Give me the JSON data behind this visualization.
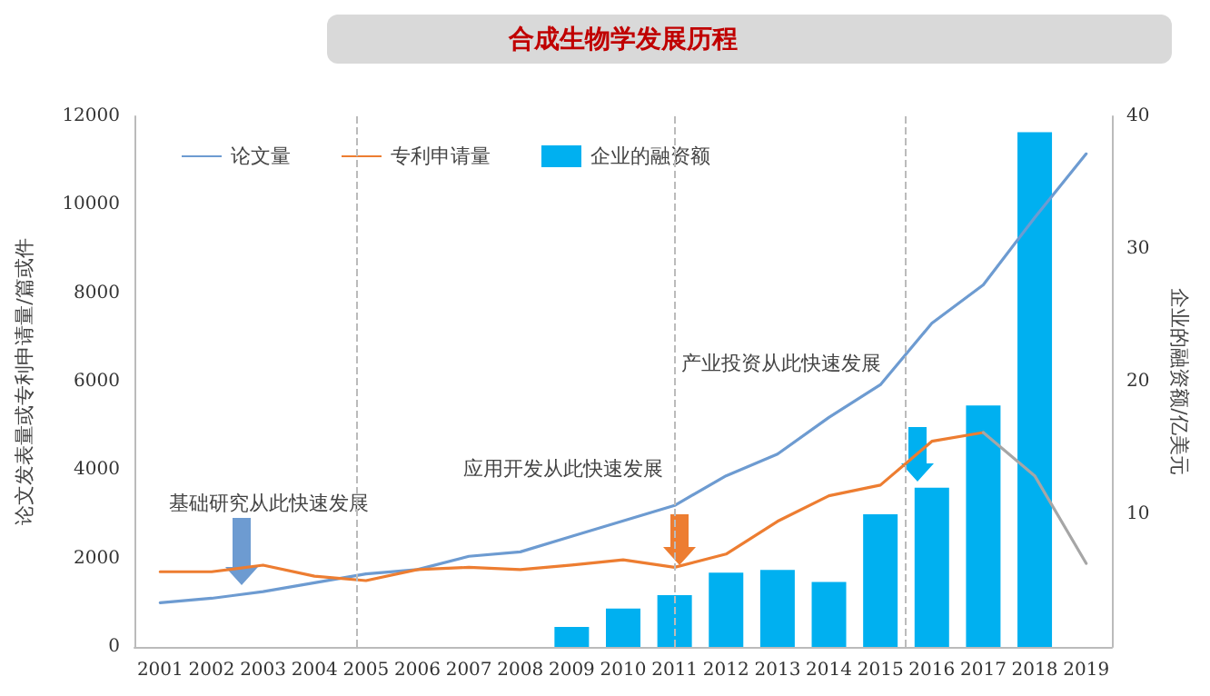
{
  "chart_data": {
    "type": "line",
    "title": "合成生物学发展历程",
    "ylabel": "论文发表量或专利申请量/篇或件",
    "y2label": "企业的融资额/亿美元",
    "x": [
      2001,
      2002,
      2003,
      2004,
      2005,
      2006,
      2007,
      2008,
      2009,
      2010,
      2011,
      2012,
      2013,
      2014,
      2015,
      2016,
      2017,
      2018,
      2019
    ],
    "xlim": [
      2000.5,
      2019.5
    ],
    "xticks": [
      2001,
      2002,
      2003,
      2004,
      2005,
      2006,
      2007,
      2008,
      2009,
      2010,
      2011,
      2012,
      2013,
      2014,
      2015,
      2016,
      2017,
      2018,
      2019
    ],
    "ylim": [
      0,
      12000
    ],
    "yticks": [
      0,
      2000,
      4000,
      6000,
      8000,
      10000,
      12000
    ],
    "y2lim": [
      0,
      40
    ],
    "y2ticks": [
      10,
      20,
      30,
      40
    ],
    "series": [
      {
        "name": "论文量",
        "color": "#6d9bd1",
        "values": [
          1000,
          1100,
          1250,
          1450,
          1650,
          1750,
          2050,
          2150,
          2500,
          2850,
          3200,
          3870,
          4360,
          5190,
          5930,
          7320,
          8190,
          9710,
          11150
        ]
      },
      {
        "name": "专利申请量",
        "color": "#ed7d31",
        "values": [
          1700,
          1700,
          1850,
          1600,
          1500,
          1750,
          1800,
          1750,
          1850,
          1970,
          1800,
          2100,
          2840,
          3420,
          3660,
          4650,
          4850,
          null,
          null
        ]
      },
      {
        "color": "#a6a6a6",
        "values": [
          null,
          null,
          null,
          null,
          null,
          null,
          null,
          null,
          null,
          null,
          null,
          null,
          null,
          null,
          null,
          null,
          4850,
          3870,
          1890
        ]
      },
      {
        "name": "企业的融资额",
        "type": "bar",
        "axis": "y2",
        "color": "#00b0f0",
        "values": [
          null,
          null,
          null,
          null,
          null,
          null,
          null,
          null,
          1.5,
          2.9,
          3.9,
          5.6,
          5.8,
          4.9,
          10.0,
          12.0,
          18.2,
          38.8,
          null
        ]
      }
    ],
    "ref_lines": [
      {
        "axis": "x",
        "value": 2004.8,
        "color": "#bbbbbb",
        "line_style": "dashed"
      },
      {
        "axis": "x",
        "value": 2011,
        "color": "#bbbbbb",
        "line_style": "dashed"
      },
      {
        "axis": "x",
        "value": 2015.5,
        "color": "#bbbbbb",
        "line_style": "dashed"
      }
    ],
    "annotations": [
      "基础研究从此快速发展",
      "应用开发从此快速发展",
      "产业投资从此快速发展"
    ],
    "legend": "top left",
    "grid": false,
    "marker": "none",
    "line_style": "solid"
  }
}
